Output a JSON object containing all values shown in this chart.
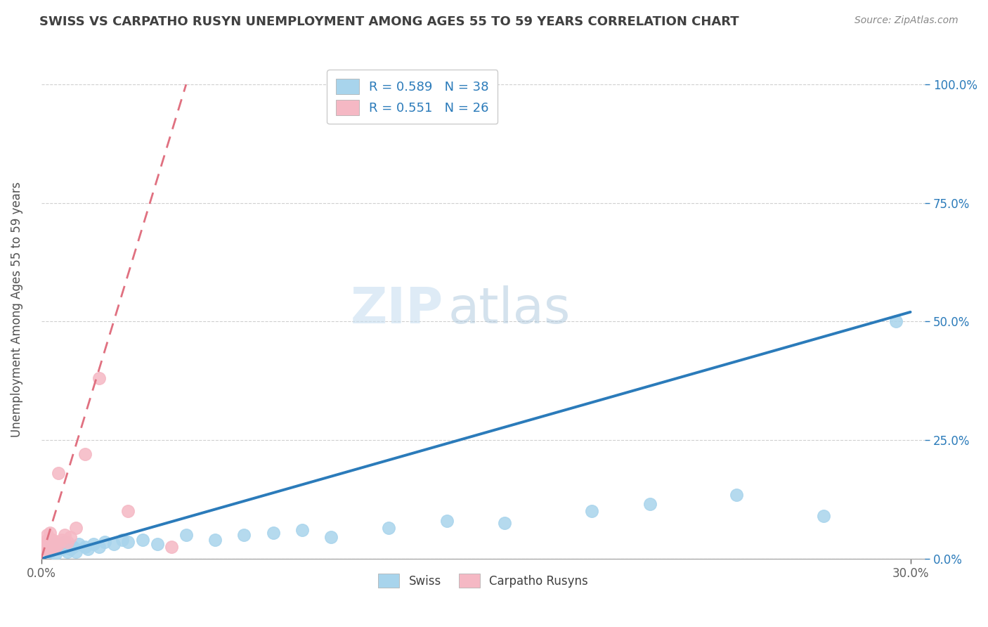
{
  "title": "SWISS VS CARPATHO RUSYN UNEMPLOYMENT AMONG AGES 55 TO 59 YEARS CORRELATION CHART",
  "source": "Source: ZipAtlas.com",
  "ylabel_label": "Unemployment Among Ages 55 to 59 years",
  "legend_swiss": "Swiss",
  "legend_rusyn": "Carpatho Rusyns",
  "R_swiss": "0.589",
  "N_swiss": "38",
  "R_rusyn": "0.551",
  "N_rusyn": "26",
  "swiss_color": "#a8d4ec",
  "rusyn_color": "#f5b8c4",
  "swiss_line_color": "#2b7bba",
  "rusyn_line_color": "#e07080",
  "watermark_zip": "ZIP",
  "watermark_atlas": "atlas",
  "background_color": "#ffffff",
  "grid_color": "#d0d0d0",
  "title_color": "#404040",
  "swiss_scatter_x": [
    0.002,
    0.003,
    0.003,
    0.004,
    0.005,
    0.005,
    0.006,
    0.007,
    0.008,
    0.009,
    0.01,
    0.011,
    0.012,
    0.013,
    0.015,
    0.016,
    0.018,
    0.02,
    0.022,
    0.025,
    0.028,
    0.03,
    0.035,
    0.04,
    0.05,
    0.06,
    0.07,
    0.08,
    0.09,
    0.1,
    0.12,
    0.14,
    0.16,
    0.19,
    0.21,
    0.24,
    0.27,
    0.295
  ],
  "swiss_scatter_y": [
    0.02,
    0.015,
    0.025,
    0.02,
    0.03,
    0.01,
    0.025,
    0.02,
    0.035,
    0.015,
    0.02,
    0.025,
    0.015,
    0.03,
    0.025,
    0.02,
    0.03,
    0.025,
    0.035,
    0.03,
    0.04,
    0.035,
    0.04,
    0.03,
    0.05,
    0.04,
    0.05,
    0.055,
    0.06,
    0.045,
    0.065,
    0.08,
    0.075,
    0.1,
    0.115,
    0.135,
    0.09,
    0.5
  ],
  "rusyn_scatter_x": [
    0.001,
    0.001,
    0.001,
    0.002,
    0.002,
    0.002,
    0.002,
    0.003,
    0.003,
    0.003,
    0.003,
    0.004,
    0.004,
    0.005,
    0.005,
    0.006,
    0.006,
    0.007,
    0.008,
    0.009,
    0.01,
    0.012,
    0.015,
    0.02,
    0.03,
    0.045
  ],
  "rusyn_scatter_y": [
    0.02,
    0.025,
    0.03,
    0.02,
    0.03,
    0.04,
    0.05,
    0.025,
    0.03,
    0.04,
    0.055,
    0.025,
    0.04,
    0.025,
    0.035,
    0.03,
    0.18,
    0.04,
    0.05,
    0.035,
    0.045,
    0.065,
    0.22,
    0.38,
    0.1,
    0.025
  ],
  "swiss_line_x": [
    0.0,
    0.3
  ],
  "swiss_line_y": [
    0.0,
    0.52
  ],
  "rusyn_line_x": [
    0.0,
    0.05
  ],
  "rusyn_line_y": [
    0.0,
    1.0
  ],
  "xmin": 0.0,
  "xmax": 0.305,
  "ymin": 0.0,
  "ymax": 1.05,
  "right_tick_color": "#2b7bba",
  "left_tick_color": "#606060"
}
